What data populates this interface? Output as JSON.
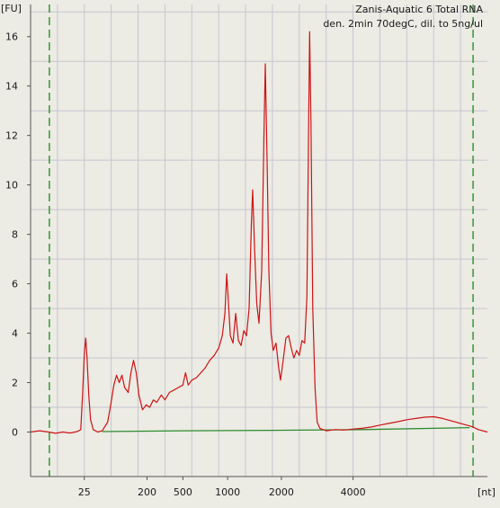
{
  "chart_data": {
    "type": "line",
    "title_lines": [
      "Zanis-Aquatic 6 Total RNA",
      "den. 2min 70degC, dil. to 5ng/ul"
    ],
    "ylabel": "[FU]",
    "xlabel": "[nt]",
    "ylim": [
      -1.8,
      17.3
    ],
    "y_ticks": [
      0,
      2,
      4,
      6,
      8,
      10,
      12,
      14,
      16
    ],
    "x_ticks": [
      {
        "label": "25",
        "pos": 24
      },
      {
        "label": "200",
        "pos": 31
      },
      {
        "label": "500",
        "pos": 35
      },
      {
        "label": "1000",
        "pos": 40
      },
      {
        "label": "2000",
        "pos": 46
      },
      {
        "label": "4000",
        "pos": 54
      }
    ],
    "x_axis": {
      "min": 18,
      "max": 69,
      "unit": "migration time (s)"
    },
    "grid": true,
    "marker_lines": [
      20.1,
      67.4
    ],
    "colors": {
      "signal": "#cc1414",
      "baseline": "#2e8b2e",
      "marker": "#1a8a1a",
      "grid": "#c6c6d0",
      "plot_bg": "#ecebe4"
    },
    "series": [
      {
        "points": [
          [
            18.0,
            0.0
          ],
          [
            19.0,
            0.05
          ],
          [
            20.0,
            0.0
          ],
          [
            20.8,
            -0.05
          ],
          [
            21.6,
            0.0
          ],
          [
            22.4,
            -0.04
          ],
          [
            23.2,
            0.02
          ],
          [
            23.6,
            0.1
          ],
          [
            23.8,
            1.5
          ],
          [
            24.0,
            3.2
          ],
          [
            24.15,
            3.8
          ],
          [
            24.3,
            3.0
          ],
          [
            24.5,
            1.5
          ],
          [
            24.7,
            0.5
          ],
          [
            25.0,
            0.1
          ],
          [
            25.5,
            0.0
          ],
          [
            26.0,
            0.05
          ],
          [
            26.6,
            0.4
          ],
          [
            27.0,
            1.2
          ],
          [
            27.3,
            1.9
          ],
          [
            27.6,
            2.3
          ],
          [
            27.9,
            2.0
          ],
          [
            28.2,
            2.3
          ],
          [
            28.5,
            1.8
          ],
          [
            28.9,
            1.6
          ],
          [
            29.2,
            2.4
          ],
          [
            29.5,
            2.9
          ],
          [
            29.8,
            2.4
          ],
          [
            30.1,
            1.5
          ],
          [
            30.5,
            0.9
          ],
          [
            30.9,
            1.1
          ],
          [
            31.3,
            1.0
          ],
          [
            31.7,
            1.3
          ],
          [
            32.1,
            1.2
          ],
          [
            32.6,
            1.5
          ],
          [
            33.0,
            1.3
          ],
          [
            33.5,
            1.6
          ],
          [
            34.0,
            1.7
          ],
          [
            34.5,
            1.8
          ],
          [
            35.0,
            1.9
          ],
          [
            35.3,
            2.4
          ],
          [
            35.6,
            1.9
          ],
          [
            36.0,
            2.1
          ],
          [
            36.5,
            2.2
          ],
          [
            37.0,
            2.4
          ],
          [
            37.5,
            2.6
          ],
          [
            38.0,
            2.9
          ],
          [
            38.5,
            3.1
          ],
          [
            39.0,
            3.4
          ],
          [
            39.4,
            3.9
          ],
          [
            39.7,
            4.8
          ],
          [
            39.9,
            6.4
          ],
          [
            40.1,
            5.2
          ],
          [
            40.3,
            3.9
          ],
          [
            40.6,
            3.6
          ],
          [
            40.9,
            4.8
          ],
          [
            41.2,
            3.7
          ],
          [
            41.5,
            3.5
          ],
          [
            41.8,
            4.1
          ],
          [
            42.1,
            3.9
          ],
          [
            42.4,
            5.0
          ],
          [
            42.65,
            8.4
          ],
          [
            42.8,
            9.8
          ],
          [
            43.0,
            7.5
          ],
          [
            43.25,
            5.2
          ],
          [
            43.5,
            4.4
          ],
          [
            43.8,
            6.5
          ],
          [
            44.05,
            12.0
          ],
          [
            44.2,
            14.9
          ],
          [
            44.4,
            11.0
          ],
          [
            44.6,
            6.5
          ],
          [
            44.85,
            4.0
          ],
          [
            45.1,
            3.3
          ],
          [
            45.4,
            3.6
          ],
          [
            45.7,
            2.6
          ],
          [
            45.9,
            2.1
          ],
          [
            46.2,
            2.9
          ],
          [
            46.5,
            3.8
          ],
          [
            46.8,
            3.9
          ],
          [
            47.1,
            3.4
          ],
          [
            47.4,
            3.0
          ],
          [
            47.7,
            3.3
          ],
          [
            48.0,
            3.1
          ],
          [
            48.3,
            3.7
          ],
          [
            48.6,
            3.6
          ],
          [
            48.85,
            5.5
          ],
          [
            49.0,
            11.0
          ],
          [
            49.15,
            16.2
          ],
          [
            49.3,
            12.5
          ],
          [
            49.5,
            5.0
          ],
          [
            49.75,
            1.8
          ],
          [
            50.0,
            0.4
          ],
          [
            50.3,
            0.15
          ],
          [
            51.0,
            0.05
          ],
          [
            52.0,
            0.1
          ],
          [
            53.0,
            0.08
          ],
          [
            54.0,
            0.12
          ],
          [
            55.0,
            0.15
          ],
          [
            56.0,
            0.2
          ],
          [
            57.0,
            0.28
          ],
          [
            58.0,
            0.35
          ],
          [
            59.0,
            0.42
          ],
          [
            60.0,
            0.5
          ],
          [
            61.0,
            0.55
          ],
          [
            62.0,
            0.6
          ],
          [
            63.0,
            0.62
          ],
          [
            64.0,
            0.55
          ],
          [
            65.0,
            0.45
          ],
          [
            66.0,
            0.35
          ],
          [
            67.0,
            0.25
          ],
          [
            67.4,
            0.2
          ],
          [
            68.0,
            0.1
          ],
          [
            69.0,
            0.0
          ]
        ]
      },
      {
        "points": [
          [
            26.0,
            0.02
          ],
          [
            35.0,
            0.05
          ],
          [
            45.0,
            0.07
          ],
          [
            55.0,
            0.1
          ],
          [
            67.0,
            0.18
          ]
        ]
      }
    ]
  }
}
